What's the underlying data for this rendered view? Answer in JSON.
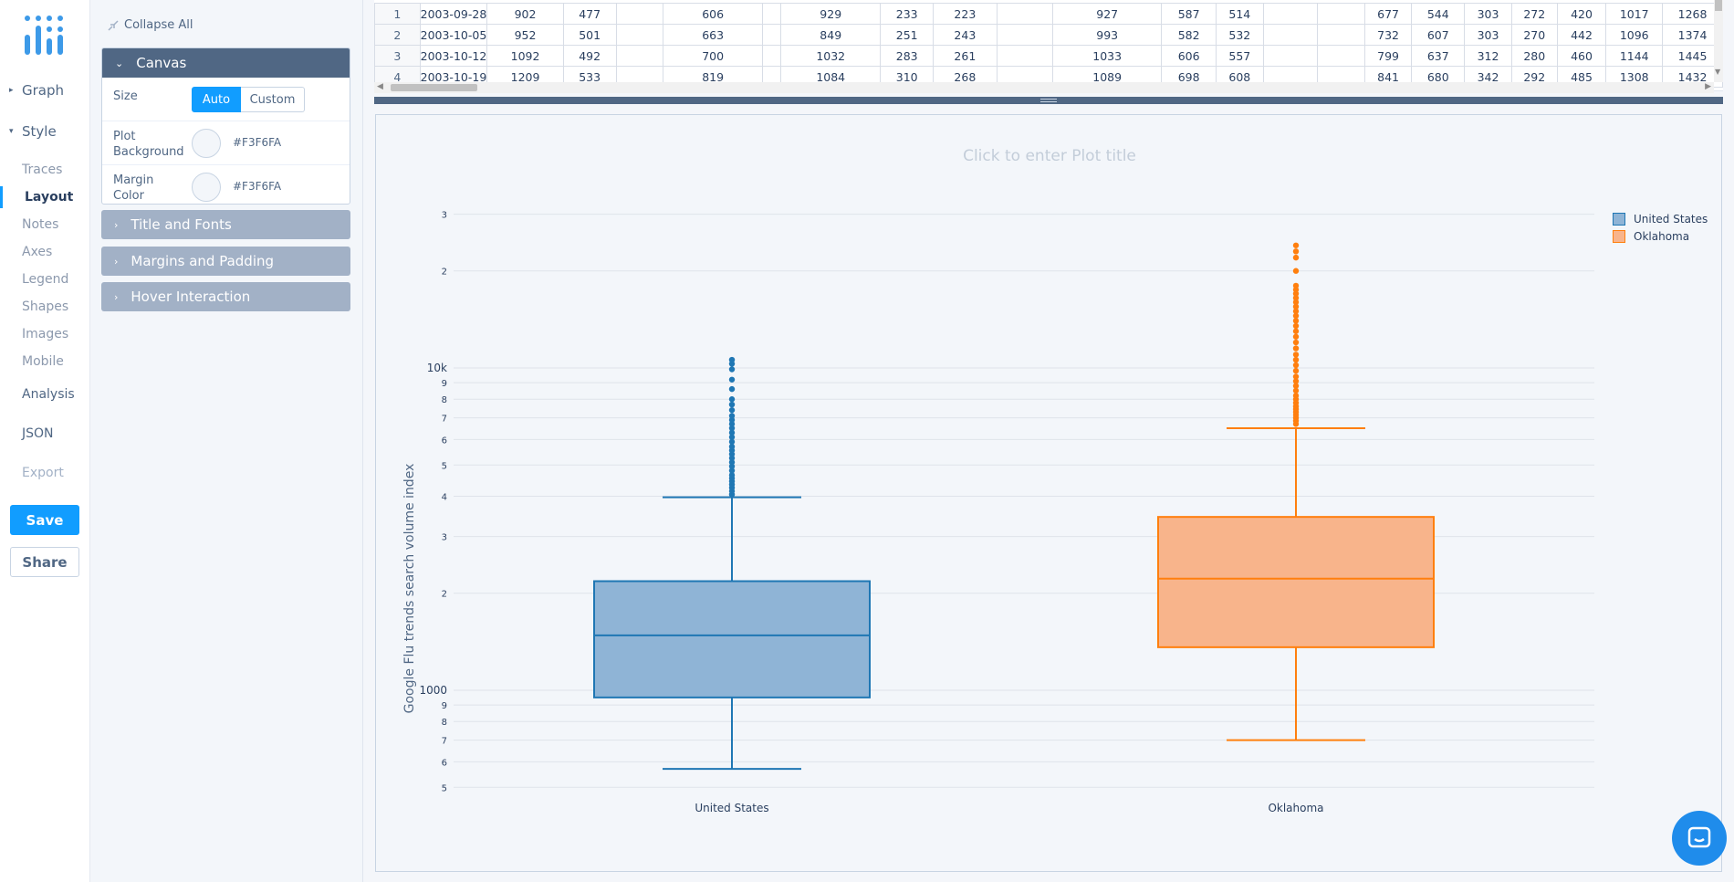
{
  "nav": {
    "graph": "Graph",
    "style": "Style",
    "style_items": [
      "Traces",
      "Layout",
      "Notes",
      "Axes",
      "Legend",
      "Shapes",
      "Images",
      "Mobile"
    ],
    "analysis": "Analysis",
    "json": "JSON",
    "export": "Export",
    "save": "Save",
    "share": "Share"
  },
  "panel": {
    "collapse_all": "Collapse All",
    "canvas": {
      "title": "Canvas",
      "size_label": "Size",
      "size_auto": "Auto",
      "size_custom": "Custom",
      "plot_bg_label": "Plot Background",
      "plot_bg_value": "#F3F6FA",
      "margin_label": "Margin Color",
      "margin_value": "#F3F6FA"
    },
    "sections": [
      "Title and Fonts",
      "Margins and Padding",
      "Hover Interaction"
    ]
  },
  "grid": {
    "rows": [
      [
        "1",
        "2003-09-28",
        "902",
        "477",
        "",
        "606",
        "",
        "929",
        "233",
        "223",
        "",
        "927",
        "587",
        "514",
        "",
        "",
        "677",
        "544",
        "303",
        "272",
        "420",
        "1017",
        "1268"
      ],
      [
        "2",
        "2003-10-05",
        "952",
        "501",
        "",
        "663",
        "",
        "849",
        "251",
        "243",
        "",
        "993",
        "582",
        "532",
        "",
        "",
        "732",
        "607",
        "303",
        "270",
        "442",
        "1096",
        "1374"
      ],
      [
        "3",
        "2003-10-12",
        "1092",
        "492",
        "",
        "700",
        "",
        "1032",
        "283",
        "261",
        "",
        "1033",
        "606",
        "557",
        "",
        "",
        "799",
        "637",
        "312",
        "280",
        "460",
        "1144",
        "1445"
      ],
      [
        "4",
        "2003-10-19",
        "1209",
        "533",
        "",
        "819",
        "",
        "1084",
        "310",
        "268",
        "",
        "1089",
        "698",
        "608",
        "",
        "",
        "841",
        "680",
        "342",
        "292",
        "485",
        "1308",
        "1432"
      ]
    ]
  },
  "plot": {
    "title_placeholder": "Click to enter Plot title"
  },
  "chart_data": {
    "type": "box",
    "title": "",
    "xlabel": "",
    "ylabel": "Google Flu trends search volume index",
    "y_scale": "log",
    "ylim": [
      500,
      3000
    ],
    "y_tick_labels": [
      "5",
      "6",
      "7",
      "8",
      "9",
      "1000",
      "2",
      "3",
      "4",
      "5",
      "6",
      "7",
      "8",
      "9",
      "10k",
      "2",
      "3"
    ],
    "categories": [
      "United States",
      "Oklahoma"
    ],
    "legend_position": "top-right",
    "series": [
      {
        "name": "United States",
        "color": "#1f77b4",
        "fill": "#8fb4d6",
        "lowerfence": 570,
        "q1": 950,
        "median": 1480,
        "q3": 2180,
        "upperfence": 3970,
        "outliers": [
          4050,
          4150,
          4250,
          4350,
          4450,
          4550,
          4650,
          4800,
          4950,
          5100,
          5250,
          5400,
          5550,
          5700,
          5900,
          6100,
          6300,
          6500,
          6700,
          6900,
          7100,
          7400,
          7700,
          8000,
          8600,
          9200,
          9900,
          10300,
          10600
        ]
      },
      {
        "name": "Oklahoma",
        "color": "#ff7f0e",
        "fill": "#f8b48b",
        "lowerfence": 700,
        "q1": 1360,
        "median": 2220,
        "q3": 3450,
        "upperfence": 6500,
        "outliers": [
          6700,
          6850,
          7000,
          7150,
          7300,
          7450,
          7600,
          7800,
          8000,
          8200,
          8500,
          8800,
          9100,
          9400,
          9800,
          10200,
          10600,
          11000,
          11500,
          12000,
          12500,
          13000,
          13500,
          14000,
          14500,
          15000,
          15500,
          16000,
          16500,
          17000,
          17500,
          18000,
          20000,
          22000,
          23000,
          24000
        ]
      }
    ]
  }
}
